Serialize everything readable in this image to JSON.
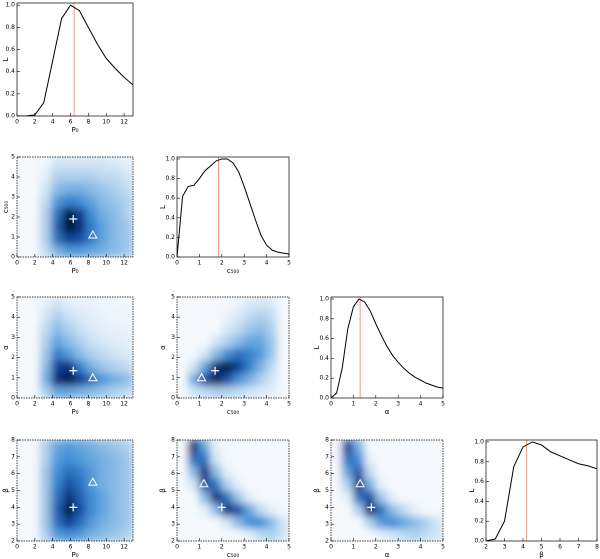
{
  "chart_data": [
    {
      "type": "line",
      "x_label": "P₀",
      "y_label": "L",
      "x": [
        0,
        1,
        2,
        3,
        4,
        5,
        6,
        7,
        8,
        9,
        10,
        11,
        12,
        13
      ],
      "values": [
        0,
        0,
        0.01,
        0.12,
        0.5,
        0.88,
        1.0,
        0.95,
        0.8,
        0.65,
        0.52,
        0.43,
        0.35,
        0.28
      ],
      "color": "#000000",
      "vline": 6.4,
      "vline_color": "#e8826a",
      "xlim": [
        0,
        13
      ],
      "xticks": [
        0,
        2,
        4,
        6,
        8,
        10,
        12
      ],
      "ylim": [
        0,
        1.02
      ],
      "yticks": [
        {
          "value": 0,
          "label": "0.0"
        },
        {
          "value": 0.2,
          "label": "0.2"
        },
        {
          "value": 0.4,
          "label": "0.4"
        },
        {
          "value": 0.6,
          "label": "0.6"
        },
        {
          "value": 0.8,
          "label": "0.8"
        },
        {
          "value": 1,
          "label": "1.0"
        }
      ]
    },
    {
      "type": "heatmap",
      "x_label": "P₀",
      "y_label": "c₅₀₀",
      "xlim": [
        0,
        13
      ],
      "xticks": [
        0,
        2,
        4,
        6,
        8,
        10,
        12
      ],
      "ylim": [
        0,
        5
      ],
      "yticks": [
        0,
        1,
        2,
        3,
        4,
        5
      ],
      "z": [
        [
          0,
          0,
          0.15,
          0.35,
          0.45,
          0.45,
          0.4,
          0.35,
          0.3,
          0.25
        ],
        [
          0,
          0,
          0.2,
          0.6,
          0.75,
          0.7,
          0.55,
          0.4,
          0.3,
          0.25
        ],
        [
          0,
          0,
          0.2,
          0.65,
          0.95,
          0.8,
          0.55,
          0.4,
          0.3,
          0.25
        ],
        [
          0,
          0,
          0.2,
          0.6,
          0.9,
          0.75,
          0.5,
          0.35,
          0.3,
          0.2
        ],
        [
          0,
          0,
          0.15,
          0.45,
          0.55,
          0.5,
          0.4,
          0.3,
          0.25,
          0.2
        ],
        [
          0,
          0,
          0.1,
          0.3,
          0.35,
          0.35,
          0.3,
          0.25,
          0.2,
          0.15
        ],
        [
          0,
          0,
          0.05,
          0.2,
          0.2,
          0.2,
          0.2,
          0.15,
          0.15,
          0.1
        ],
        [
          0,
          0,
          0.02,
          0.1,
          0.1,
          0.1,
          0.1,
          0.1,
          0.08,
          0.05
        ]
      ],
      "best_fit": [
        6.3,
        1.9
      ],
      "marker": [
        8.5,
        1.1
      ]
    },
    {
      "type": "line",
      "x_label": "c₅₀₀",
      "y_label": "L",
      "x": [
        0,
        0.25,
        0.5,
        0.75,
        1,
        1.25,
        1.5,
        1.75,
        2,
        2.25,
        2.5,
        2.75,
        3,
        3.25,
        3.5,
        3.75,
        4,
        4.25,
        4.5,
        4.75,
        5
      ],
      "values": [
        0,
        0.62,
        0.72,
        0.73,
        0.8,
        0.88,
        0.93,
        0.98,
        1,
        1,
        0.96,
        0.87,
        0.72,
        0.55,
        0.38,
        0.22,
        0.12,
        0.07,
        0.05,
        0.04,
        0.03
      ],
      "color": "#000000",
      "vline": 1.85,
      "vline_color": "#e8826a",
      "xlim": [
        0,
        5
      ],
      "xticks": [
        0,
        1,
        2,
        3,
        4,
        5
      ],
      "ylim": [
        0,
        1.02
      ],
      "yticks": [
        {
          "value": 0,
          "label": "0.0"
        },
        {
          "value": 0.2,
          "label": "0.2"
        },
        {
          "value": 0.4,
          "label": "0.4"
        },
        {
          "value": 0.6,
          "label": "0.6"
        },
        {
          "value": 0.8,
          "label": "0.8"
        },
        {
          "value": 1,
          "label": "1.0"
        }
      ]
    },
    {
      "type": "heatmap",
      "x_label": "P₀",
      "y_label": "α",
      "xlim": [
        0,
        13
      ],
      "xticks": [
        0,
        2,
        4,
        6,
        8,
        10,
        12
      ],
      "ylim": [
        0,
        5
      ],
      "yticks": [
        0,
        1,
        2,
        3,
        4,
        5
      ],
      "z": [
        [
          0,
          0,
          0.2,
          0.4,
          0.4,
          0.35,
          0.3,
          0.25,
          0.2,
          0.15
        ],
        [
          0,
          0,
          0.35,
          0.8,
          0.9,
          0.75,
          0.6,
          0.45,
          0.35,
          0.3
        ],
        [
          0,
          0,
          0.3,
          0.75,
          0.8,
          0.55,
          0.35,
          0.25,
          0.2,
          0.15
        ],
        [
          0,
          0,
          0.25,
          0.55,
          0.45,
          0.3,
          0.2,
          0.15,
          0.1,
          0.08
        ],
        [
          0,
          0,
          0.2,
          0.4,
          0.3,
          0.2,
          0.12,
          0.08,
          0.06,
          0.05
        ],
        [
          0,
          0,
          0.15,
          0.3,
          0.2,
          0.12,
          0.08,
          0.05,
          0.04,
          0.03
        ],
        [
          0,
          0,
          0.1,
          0.2,
          0.12,
          0.08,
          0.05,
          0.03,
          0.02,
          0.02
        ],
        [
          0,
          0,
          0.05,
          0.1,
          0.06,
          0.04,
          0.03,
          0.02,
          0.01,
          0.01
        ]
      ],
      "best_fit": [
        6.3,
        1.35
      ],
      "marker": [
        8.5,
        1.0
      ]
    },
    {
      "type": "heatmap",
      "x_label": "c₅₀₀",
      "y_label": "α",
      "xlim": [
        0,
        5
      ],
      "xticks": [
        0,
        1,
        2,
        3,
        4,
        5
      ],
      "ylim": [
        0,
        5
      ],
      "yticks": [
        0,
        1,
        2,
        3,
        4,
        5
      ],
      "z": [
        [
          0,
          0.1,
          0.15,
          0.2,
          0.2,
          0.15,
          0.1,
          0.08,
          0.05,
          0
        ],
        [
          0,
          0.35,
          0.7,
          0.85,
          0.7,
          0.5,
          0.35,
          0.2,
          0.1,
          0
        ],
        [
          0,
          0.1,
          0.4,
          0.8,
          0.9,
          0.75,
          0.55,
          0.35,
          0.15,
          0
        ],
        [
          0,
          0,
          0.1,
          0.3,
          0.5,
          0.6,
          0.55,
          0.45,
          0.25,
          0
        ],
        [
          0,
          0,
          0,
          0.1,
          0.2,
          0.3,
          0.4,
          0.4,
          0.25,
          0
        ],
        [
          0,
          0,
          0,
          0,
          0.08,
          0.15,
          0.25,
          0.3,
          0.2,
          0
        ],
        [
          0,
          0,
          0,
          0,
          0.03,
          0.08,
          0.15,
          0.2,
          0.15,
          0
        ],
        [
          0,
          0,
          0,
          0,
          0,
          0.03,
          0.08,
          0.1,
          0.08,
          0
        ]
      ],
      "best_fit": [
        1.7,
        1.35
      ],
      "marker": [
        1.1,
        1.0
      ]
    },
    {
      "type": "line",
      "x_label": "α",
      "y_label": "L",
      "x": [
        0,
        0.25,
        0.5,
        0.75,
        1,
        1.25,
        1.5,
        1.75,
        2,
        2.25,
        2.5,
        2.75,
        3,
        3.25,
        3.5,
        3.75,
        4,
        4.25,
        4.5,
        4.75,
        5
      ],
      "values": [
        0,
        0.05,
        0.3,
        0.7,
        0.92,
        1,
        0.97,
        0.88,
        0.75,
        0.63,
        0.52,
        0.43,
        0.36,
        0.3,
        0.25,
        0.21,
        0.18,
        0.15,
        0.13,
        0.11,
        0.1
      ],
      "color": "#000000",
      "vline": 1.3,
      "vline_color": "#e8826a",
      "xlim": [
        0,
        5
      ],
      "xticks": [
        0,
        1,
        2,
        3,
        4,
        5
      ],
      "ylim": [
        0,
        1.02
      ],
      "yticks": [
        {
          "value": 0,
          "label": "0.0"
        },
        {
          "value": 0.2,
          "label": "0.2"
        },
        {
          "value": 0.4,
          "label": "0.4"
        },
        {
          "value": 0.6,
          "label": "0.6"
        },
        {
          "value": 0.8,
          "label": "0.8"
        },
        {
          "value": 1,
          "label": "1.0"
        }
      ]
    },
    {
      "type": "heatmap",
      "x_label": "P₀",
      "y_label": "β",
      "xlim": [
        0,
        13
      ],
      "xticks": [
        0,
        2,
        4,
        6,
        8,
        10,
        12
      ],
      "ylim": [
        2,
        8
      ],
      "yticks": [
        2,
        3,
        4,
        5,
        6,
        7,
        8
      ],
      "z": [
        [
          0,
          0,
          0.2,
          0.45,
          0.5,
          0.45,
          0.35,
          0.3,
          0.25,
          0.2
        ],
        [
          0,
          0,
          0.25,
          0.6,
          0.75,
          0.6,
          0.45,
          0.35,
          0.3,
          0.25
        ],
        [
          0,
          0,
          0.25,
          0.65,
          0.9,
          0.7,
          0.5,
          0.4,
          0.3,
          0.25
        ],
        [
          0,
          0,
          0.25,
          0.6,
          0.8,
          0.65,
          0.5,
          0.4,
          0.3,
          0.25
        ],
        [
          0,
          0,
          0.25,
          0.55,
          0.7,
          0.6,
          0.45,
          0.35,
          0.3,
          0.25
        ],
        [
          0,
          0,
          0.25,
          0.5,
          0.6,
          0.55,
          0.45,
          0.35,
          0.3,
          0.25
        ],
        [
          0,
          0,
          0.2,
          0.45,
          0.5,
          0.45,
          0.4,
          0.35,
          0.3,
          0.25
        ],
        [
          0,
          0,
          0.2,
          0.4,
          0.45,
          0.4,
          0.35,
          0.3,
          0.25,
          0.2
        ]
      ],
      "best_fit": [
        6.3,
        4.0
      ],
      "marker": [
        8.5,
        5.5
      ]
    },
    {
      "type": "heatmap",
      "x_label": "c₅₀₀",
      "y_label": "β",
      "xlim": [
        0,
        5
      ],
      "xticks": [
        0,
        1,
        2,
        3,
        4,
        5
      ],
      "ylim": [
        2,
        8
      ],
      "yticks": [
        2,
        3,
        4,
        5,
        6,
        7,
        8
      ],
      "z": [
        [
          0,
          0,
          0,
          0,
          0,
          0,
          0.05,
          0.15,
          0.2,
          0.1
        ],
        [
          0,
          0,
          0,
          0,
          0.1,
          0.3,
          0.5,
          0.5,
          0.3,
          0.1
        ],
        [
          0,
          0,
          0.05,
          0.3,
          0.8,
          0.7,
          0.4,
          0.15,
          0.05,
          0
        ],
        [
          0,
          0,
          0.3,
          0.8,
          0.6,
          0.25,
          0.05,
          0,
          0,
          0
        ],
        [
          0,
          0.1,
          0.7,
          0.6,
          0.2,
          0.05,
          0,
          0,
          0,
          0
        ],
        [
          0,
          0.3,
          0.8,
          0.3,
          0.05,
          0,
          0,
          0,
          0,
          0
        ],
        [
          0,
          0.6,
          0.6,
          0.1,
          0,
          0,
          0,
          0,
          0,
          0
        ],
        [
          0,
          0.8,
          0.4,
          0.05,
          0,
          0,
          0,
          0,
          0,
          0
        ]
      ],
      "best_fit": [
        2.0,
        4.0
      ],
      "marker": [
        1.2,
        5.4
      ]
    },
    {
      "type": "heatmap",
      "x_label": "α",
      "y_label": "β",
      "xlim": [
        0,
        5
      ],
      "xticks": [
        0,
        1,
        2,
        3,
        4,
        5
      ],
      "ylim": [
        2,
        8
      ],
      "yticks": [
        2,
        3,
        4,
        5,
        6,
        7,
        8
      ],
      "z": [
        [
          0,
          0,
          0,
          0,
          0.05,
          0.1,
          0.15,
          0.2,
          0.15,
          0.1
        ],
        [
          0,
          0,
          0,
          0.2,
          0.45,
          0.5,
          0.4,
          0.3,
          0.2,
          0.1
        ],
        [
          0,
          0,
          0.2,
          0.85,
          0.6,
          0.3,
          0.15,
          0.05,
          0,
          0
        ],
        [
          0,
          0.05,
          0.6,
          0.7,
          0.25,
          0.05,
          0,
          0,
          0,
          0
        ],
        [
          0,
          0.2,
          0.8,
          0.35,
          0.05,
          0,
          0,
          0,
          0,
          0
        ],
        [
          0,
          0.4,
          0.7,
          0.15,
          0,
          0,
          0,
          0,
          0,
          0
        ],
        [
          0,
          0.6,
          0.5,
          0.05,
          0,
          0,
          0,
          0,
          0,
          0
        ],
        [
          0,
          0.75,
          0.35,
          0,
          0,
          0,
          0,
          0,
          0,
          0
        ]
      ],
      "best_fit": [
        1.8,
        4.0
      ],
      "marker": [
        1.3,
        5.4
      ]
    },
    {
      "type": "line",
      "x_label": "β",
      "y_label": "L",
      "x": [
        2,
        2.5,
        3,
        3.5,
        4,
        4.5,
        5,
        5.5,
        6,
        6.5,
        7,
        7.5,
        8
      ],
      "values": [
        0,
        0.02,
        0.2,
        0.75,
        0.95,
        1,
        0.97,
        0.9,
        0.86,
        0.82,
        0.78,
        0.76,
        0.73
      ],
      "color": "#000000",
      "vline": 4.2,
      "vline_color": "#e8826a",
      "xlim": [
        2,
        8
      ],
      "xticks": [
        2,
        3,
        4,
        5,
        6,
        7,
        8
      ],
      "ylim": [
        0,
        1.02
      ],
      "yticks": [
        {
          "value": 0,
          "label": "0.0"
        },
        {
          "value": 0.2,
          "label": "0.2"
        },
        {
          "value": 0.4,
          "label": "0.4"
        },
        {
          "value": 0.6,
          "label": "0.6"
        },
        {
          "value": 0.8,
          "label": "0.8"
        },
        {
          "value": 1,
          "label": "1.0"
        }
      ]
    }
  ]
}
